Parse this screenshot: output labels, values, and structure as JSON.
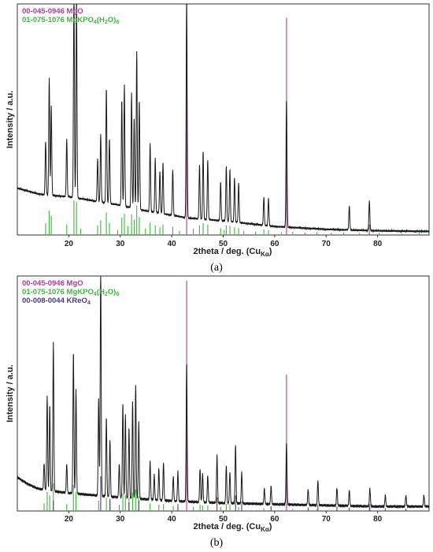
{
  "chart_data": [
    {
      "type": "line",
      "panel_label": "(a)",
      "xlabel": "2theta / deg. (Cu",
      "xlabel_sub": "Kα",
      "xlabel_close": ")",
      "ylabel": "Intensity / a.u.",
      "xlim": [
        10,
        90
      ],
      "ylim": [
        0,
        1.0
      ],
      "xticks": [
        20,
        30,
        40,
        50,
        60,
        70,
        80
      ],
      "legend_position": "top-left",
      "legend": [
        {
          "code": "00-045-0946",
          "formula": [
            [
              "MgO",
              ""
            ]
          ],
          "color": "#b03aa2"
        },
        {
          "code": "01-075-1076",
          "formula": [
            [
              "MgKPO",
              ""
            ],
            [
              "4",
              "sub"
            ],
            [
              "(H",
              ""
            ],
            [
              "2",
              "sub"
            ],
            [
              "O)",
              ""
            ],
            [
              "6",
              "sub"
            ]
          ],
          "color": "#3cba3c"
        }
      ],
      "baseline": [
        [
          10,
          0.33
        ],
        [
          12,
          0.31
        ],
        [
          14,
          0.29
        ],
        [
          16,
          0.28
        ],
        [
          20,
          0.27
        ],
        [
          25,
          0.24
        ],
        [
          30,
          0.21
        ],
        [
          35,
          0.17
        ],
        [
          40,
          0.14
        ],
        [
          43,
          0.12
        ],
        [
          50,
          0.1
        ],
        [
          55,
          0.08
        ],
        [
          60,
          0.06
        ],
        [
          65,
          0.05
        ],
        [
          70,
          0.04
        ],
        [
          80,
          0.03
        ],
        [
          90,
          0.025
        ]
      ],
      "peaks": [
        [
          15.5,
          0.38
        ],
        [
          16.2,
          0.83
        ],
        [
          16.6,
          0.63
        ],
        [
          19.6,
          0.41
        ],
        [
          21.0,
          1.47
        ],
        [
          21.5,
          1.43
        ],
        [
          25.6,
          0.3
        ],
        [
          26.2,
          0.48
        ],
        [
          27.3,
          0.81
        ],
        [
          27.9,
          0.46
        ],
        [
          30.3,
          0.75
        ],
        [
          30.8,
          0.86
        ],
        [
          32.2,
          0.81
        ],
        [
          32.7,
          0.64
        ],
        [
          33.2,
          1.11
        ],
        [
          33.7,
          0.77
        ],
        [
          35.8,
          0.48
        ],
        [
          36.8,
          0.38
        ],
        [
          37.7,
          0.3
        ],
        [
          38.3,
          0.36
        ],
        [
          40.2,
          0.32
        ],
        [
          42.9,
          1.58
        ],
        [
          45.4,
          0.38
        ],
        [
          46.1,
          0.48
        ],
        [
          47.0,
          0.42
        ],
        [
          49.5,
          0.27
        ],
        [
          50.6,
          0.39
        ],
        [
          51.3,
          0.37
        ],
        [
          52.2,
          0.31
        ],
        [
          53.0,
          0.28
        ],
        [
          57.9,
          0.2
        ],
        [
          58.8,
          0.19
        ],
        [
          62.3,
          0.91
        ],
        [
          74.5,
          0.17
        ],
        [
          78.4,
          0.21
        ]
      ],
      "reference_lines": [
        {
          "phase": "MgO",
          "color": "#b03aa2",
          "x": [
            42.9,
            62.3,
            78.4
          ],
          "h": [
            0.98,
            0.98,
            0.3
          ]
        },
        {
          "phase": "MgKPO4(H2O)6",
          "color": "#3cba3c",
          "x": [
            15.5,
            16.2,
            16.6,
            19.6,
            21.0,
            21.5,
            22.3,
            25.6,
            26.2,
            27.3,
            27.9,
            29.5,
            30.3,
            30.8,
            31.5,
            32.2,
            32.7,
            33.2,
            33.7,
            34.9,
            35.8,
            36.8,
            37.7,
            38.3,
            40.2,
            41.5,
            44.2,
            45.4,
            46.1,
            47.0,
            49.5,
            50.2,
            50.6,
            51.3,
            52.2,
            53.0,
            54.0,
            56.3,
            57.9,
            58.8,
            61.3,
            63.5,
            65.9,
            68.2,
            71.0,
            73.4,
            76.5,
            80.3,
            84.7,
            88.1
          ],
          "h": [
            0.34,
            0.7,
            0.55,
            0.3,
            1.0,
            0.95,
            0.18,
            0.28,
            0.42,
            0.65,
            0.35,
            0.15,
            0.5,
            0.62,
            0.25,
            0.6,
            0.44,
            0.85,
            0.52,
            0.18,
            0.36,
            0.28,
            0.22,
            0.3,
            0.24,
            0.12,
            0.18,
            0.28,
            0.34,
            0.3,
            0.2,
            0.14,
            0.28,
            0.26,
            0.22,
            0.2,
            0.12,
            0.1,
            0.16,
            0.14,
            0.08,
            0.09,
            0.07,
            0.08,
            0.06,
            0.07,
            0.06,
            0.06,
            0.05,
            0.05
          ]
        }
      ]
    },
    {
      "type": "line",
      "panel_label": "(b)",
      "xlabel": "2theta / deg. (Cu",
      "xlabel_sub": "Kα",
      "xlabel_close": ")",
      "ylabel": "Intensity / a.u.",
      "xlim": [
        10,
        90
      ],
      "ylim": [
        0,
        1.0
      ],
      "xticks": [
        20,
        30,
        40,
        50,
        60,
        70,
        80
      ],
      "legend_position": "top-left",
      "legend": [
        {
          "code": "00-045-0946",
          "formula": [
            [
              "MgO",
              ""
            ]
          ],
          "color": "#b03aa2"
        },
        {
          "code": "01-075-1076",
          "formula": [
            [
              "MgKPO",
              ""
            ],
            [
              "4",
              "sub"
            ],
            [
              "(H",
              ""
            ],
            [
              "2",
              "sub"
            ],
            [
              "O)",
              ""
            ],
            [
              "6",
              "sub"
            ]
          ],
          "color": "#3cba3c"
        },
        {
          "code": "00-008-0044",
          "formula": [
            [
              "KReO",
              ""
            ],
            [
              "4",
              "sub"
            ]
          ],
          "color": "#4a3a8a"
        }
      ],
      "baseline": [
        [
          10,
          0.15
        ],
        [
          12,
          0.12
        ],
        [
          14,
          0.1
        ],
        [
          16,
          0.09
        ],
        [
          20,
          0.08
        ],
        [
          25,
          0.07
        ],
        [
          30,
          0.06
        ],
        [
          40,
          0.045
        ],
        [
          50,
          0.035
        ],
        [
          60,
          0.03
        ],
        [
          70,
          0.025
        ],
        [
          80,
          0.02
        ],
        [
          90,
          0.02
        ]
      ],
      "peaks": [
        [
          15.2,
          0.12
        ],
        [
          15.8,
          0.42
        ],
        [
          16.3,
          0.38
        ],
        [
          17.0,
          0.66
        ],
        [
          19.6,
          0.13
        ],
        [
          20.9,
          0.63
        ],
        [
          21.4,
          0.46
        ],
        [
          25.8,
          0.43
        ],
        [
          26.2,
          1.02
        ],
        [
          27.3,
          0.35
        ],
        [
          28.0,
          0.25
        ],
        [
          29.8,
          0.15
        ],
        [
          30.5,
          0.42
        ],
        [
          31.0,
          0.37
        ],
        [
          31.7,
          0.31
        ],
        [
          32.4,
          0.43
        ],
        [
          33.0,
          0.51
        ],
        [
          33.6,
          0.34
        ],
        [
          35.8,
          0.17
        ],
        [
          36.6,
          0.11
        ],
        [
          37.5,
          0.14
        ],
        [
          38.4,
          0.17
        ],
        [
          40.3,
          0.11
        ],
        [
          41.2,
          0.13
        ],
        [
          42.9,
          0.62
        ],
        [
          45.5,
          0.15
        ],
        [
          46.0,
          0.13
        ],
        [
          47.0,
          0.12
        ],
        [
          48.8,
          0.21
        ],
        [
          50.6,
          0.17
        ],
        [
          51.3,
          0.14
        ],
        [
          52.4,
          0.26
        ],
        [
          53.6,
          0.14
        ],
        [
          58.0,
          0.07
        ],
        [
          59.3,
          0.08
        ],
        [
          62.3,
          0.28
        ],
        [
          66.5,
          0.07
        ],
        [
          68.4,
          0.11
        ],
        [
          72.1,
          0.08
        ],
        [
          74.5,
          0.07
        ],
        [
          78.5,
          0.08
        ],
        [
          81.5,
          0.05
        ],
        [
          85.5,
          0.05
        ],
        [
          89.0,
          0.05
        ]
      ],
      "reference_lines": [
        {
          "phase": "MgO",
          "color": "#b03aa2",
          "x": [
            42.9,
            62.3,
            78.4
          ],
          "h": [
            0.98,
            0.58,
            0.2
          ]
        },
        {
          "phase": "MgKPO4(H2O)6",
          "color": "#3cba3c",
          "x": [
            15.2,
            15.8,
            16.3,
            17.0,
            19.6,
            20.9,
            21.4,
            25.8,
            27.3,
            28.0,
            29.8,
            30.5,
            31.0,
            31.7,
            32.4,
            33.0,
            33.6,
            35.8,
            37.5,
            38.4,
            40.3,
            44.2,
            45.5,
            46.0,
            47.0,
            49.5,
            50.6,
            51.3,
            53.0,
            57.9,
            63.5,
            68.2
          ],
          "h": [
            0.22,
            0.55,
            0.45,
            0.8,
            0.2,
            0.75,
            0.55,
            0.3,
            0.38,
            0.28,
            0.18,
            0.5,
            0.45,
            0.38,
            0.52,
            0.62,
            0.42,
            0.22,
            0.18,
            0.2,
            0.14,
            0.12,
            0.18,
            0.16,
            0.15,
            0.12,
            0.2,
            0.18,
            0.12,
            0.08,
            0.06,
            0.05
          ]
        },
        {
          "phase": "KReO4",
          "color": "#4a3a8a",
          "x": [
            17.0,
            26.2,
            28.0,
            31.7,
            33.6,
            41.2,
            48.8,
            52.4,
            53.6,
            59.3,
            66.5,
            68.4,
            72.1,
            74.5,
            78.5,
            81.5,
            85.5
          ],
          "h": [
            0.3,
            1.0,
            0.35,
            0.25,
            0.3,
            0.2,
            0.4,
            0.45,
            0.28,
            0.14,
            0.1,
            0.18,
            0.12,
            0.1,
            0.12,
            0.08,
            0.07
          ]
        }
      ]
    }
  ]
}
